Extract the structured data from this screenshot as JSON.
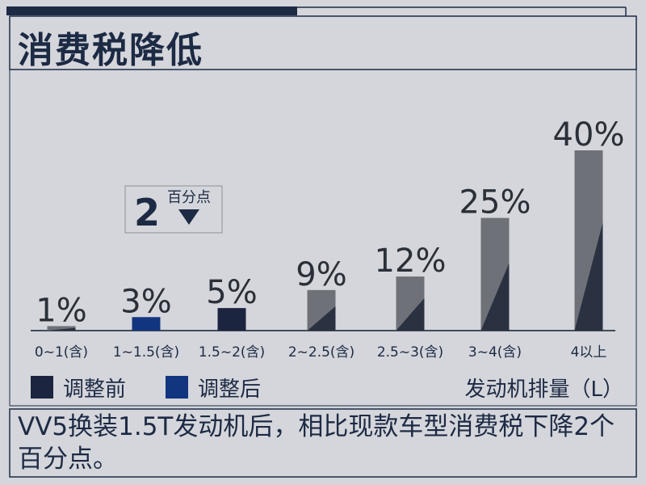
{
  "title": "消费税降低",
  "caption": "VV5换装1.5T发动机后，相比现款车型消费税下降2个百分点。",
  "callout": {
    "number": "2",
    "text": "百分点"
  },
  "colors": {
    "before": "#1b2540",
    "after": "#123580",
    "gray": "#6e7178",
    "dark": "#2a3141",
    "background": "#d4d6db",
    "title": "#1d2a44"
  },
  "chart_data": {
    "type": "bar",
    "categories": [
      "0~1(含)",
      "1~1.5(含)",
      "1.5~2(含)",
      "2~2.5(含)",
      "2.5~3(含)",
      "3~4(含)",
      "4以上"
    ],
    "series": [
      {
        "values": [
          1,
          3,
          5,
          9,
          12,
          25,
          40
        ]
      }
    ],
    "data_labels": [
      "1%",
      "3%",
      "5%",
      "9%",
      "12%",
      "25%",
      "40%"
    ],
    "highlight": {
      "before_label": "调整前",
      "after_label": "调整后",
      "before_value": 5,
      "after_value": 3
    },
    "xlabel": "发动机排量（L）",
    "ylabel": "",
    "ylim": [
      0,
      40
    ],
    "grid": false,
    "legend": "bottom-left"
  }
}
